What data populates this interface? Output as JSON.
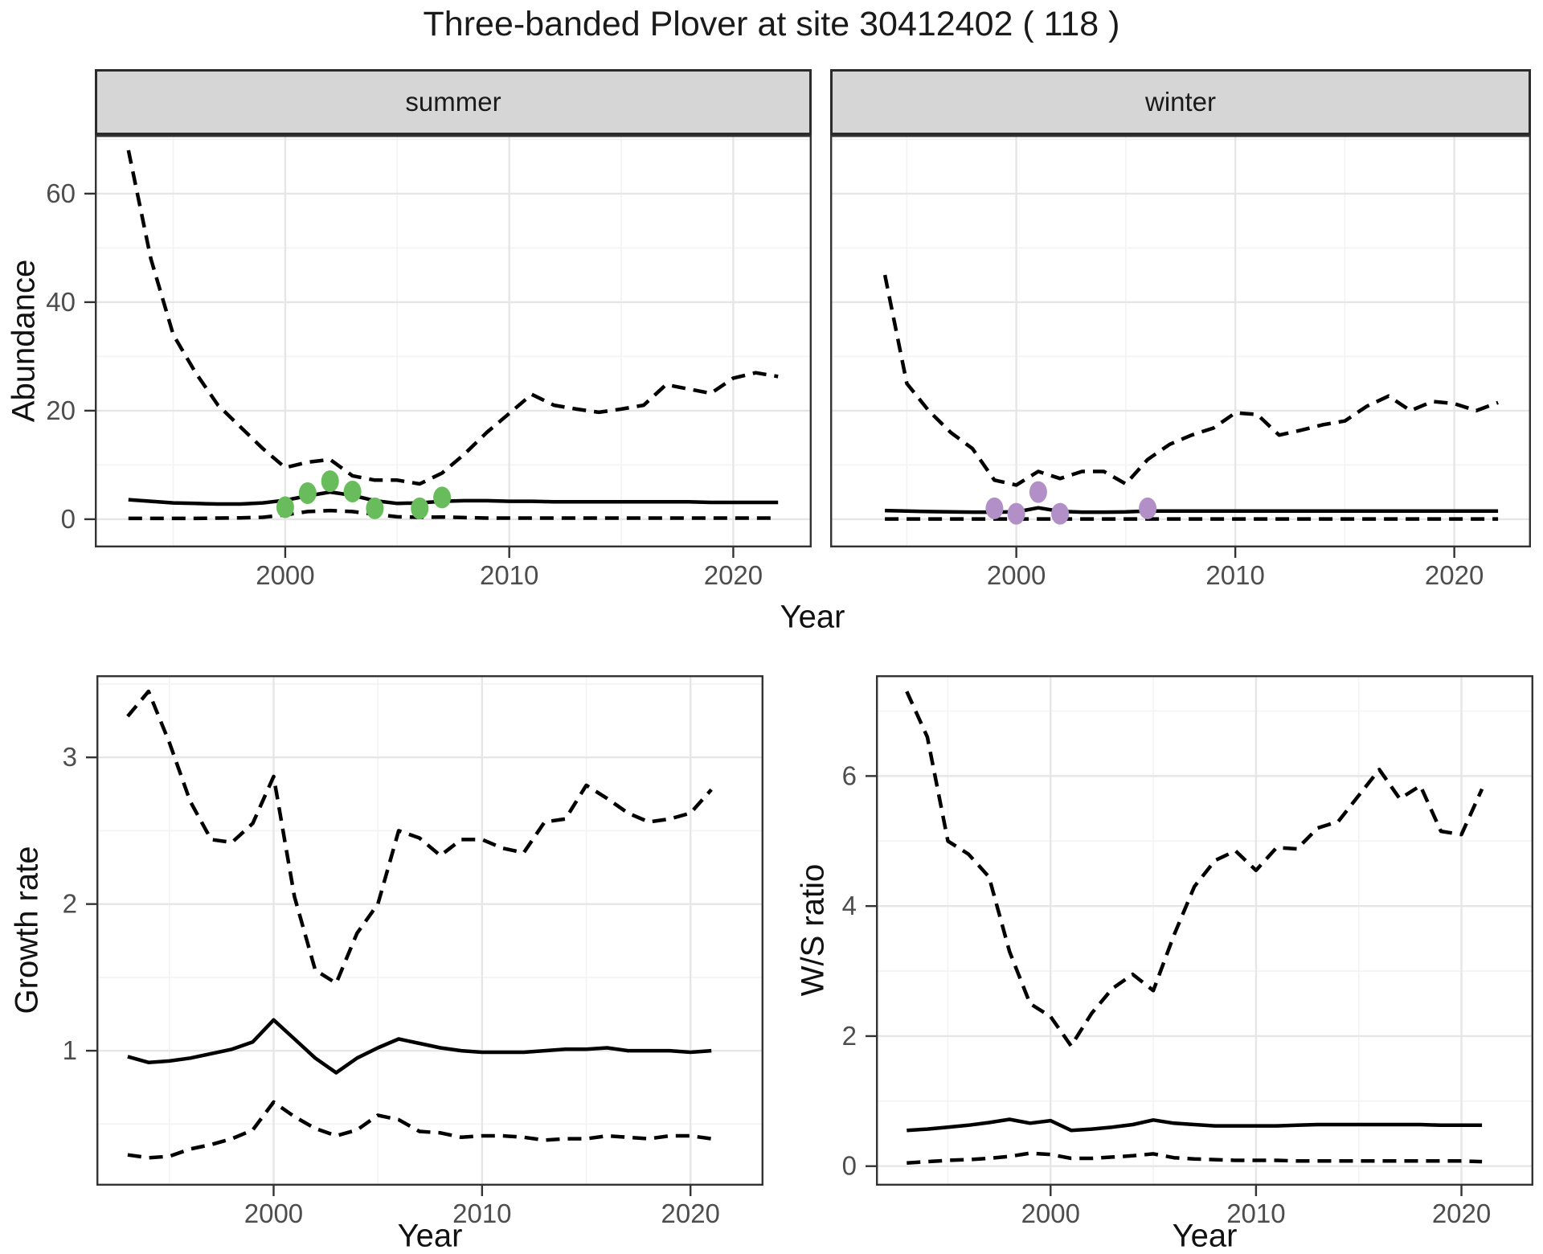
{
  "figure": {
    "title": "Three-banded Plover at site 30412402 ( 118 )"
  },
  "colors": {
    "line": "#000000",
    "summer_points": "#68bc5b",
    "winter_points": "#b290c7",
    "strip_bg": "#d6d6d6",
    "grid_major": "#e6e6e6",
    "grid_minor": "#f3f3f3",
    "tick_label": "#4d4d4d",
    "panel_border": "#333333"
  },
  "top_row": {
    "ylabel": "Abundance",
    "xlabel": "Year",
    "facets": [
      "summer",
      "winter"
    ]
  },
  "bottom_left": {
    "ylabel": "Growth rate",
    "xlabel": "Year"
  },
  "bottom_right": {
    "ylabel": "W/S ratio",
    "xlabel": "Year"
  },
  "chart_data": [
    {
      "id": "abundance_summer",
      "type": "line",
      "facet": "summer",
      "xlabel": "Year",
      "ylabel": "Abundance",
      "xlim": [
        1991.5,
        2023.5
      ],
      "ylim": [
        -5.2,
        70.8
      ],
      "xticks": [
        2000,
        2010,
        2020
      ],
      "yticks": [
        0,
        20,
        40,
        60
      ],
      "xticks_minor": [
        1995,
        2005,
        2015
      ],
      "yticks_minor": [
        10,
        30,
        50,
        70
      ],
      "axes": {
        "left": true,
        "bottom": true
      },
      "series": [
        {
          "name": "upper_ci",
          "style": "dashed",
          "x": [
            1993,
            1994,
            1995,
            1996,
            1997,
            1998,
            1999,
            2000,
            2001,
            2002,
            2003,
            2004,
            2005,
            2006,
            2007,
            2008,
            2009,
            2010,
            2011,
            2012,
            2013,
            2014,
            2015,
            2016,
            2017,
            2018,
            2019,
            2020,
            2021,
            2022
          ],
          "y": [
            68,
            48,
            34,
            27,
            21,
            17,
            13,
            9.5,
            10.5,
            11,
            8,
            7.2,
            7.2,
            6.5,
            8.5,
            12,
            16,
            19.5,
            23,
            21,
            20.3,
            19.7,
            20.3,
            21,
            24.8,
            24,
            23.2,
            26,
            27,
            26.3
          ]
        },
        {
          "name": "estimate",
          "style": "solid",
          "x": [
            1993,
            1994,
            1995,
            1996,
            1997,
            1998,
            1999,
            2000,
            2001,
            2002,
            2003,
            2004,
            2005,
            2006,
            2007,
            2008,
            2009,
            2010,
            2011,
            2012,
            2013,
            2014,
            2015,
            2016,
            2017,
            2018,
            2019,
            2020,
            2021,
            2022
          ],
          "y": [
            3.6,
            3.3,
            3.0,
            2.9,
            2.8,
            2.8,
            3.0,
            3.5,
            4.3,
            5.0,
            4.4,
            3.4,
            2.9,
            3.0,
            3.3,
            3.4,
            3.4,
            3.3,
            3.3,
            3.2,
            3.2,
            3.2,
            3.2,
            3.2,
            3.2,
            3.2,
            3.1,
            3.1,
            3.1,
            3.1
          ]
        },
        {
          "name": "lower_ci",
          "style": "dashed",
          "x": [
            1993,
            1994,
            1995,
            1996,
            1997,
            1998,
            1999,
            2000,
            2001,
            2002,
            2003,
            2004,
            2005,
            2006,
            2007,
            2008,
            2009,
            2010,
            2011,
            2012,
            2013,
            2014,
            2015,
            2016,
            2017,
            2018,
            2019,
            2020,
            2021,
            2022
          ],
          "y": [
            0.15,
            0.15,
            0.15,
            0.15,
            0.2,
            0.25,
            0.35,
            0.8,
            1.4,
            1.6,
            1.4,
            0.9,
            0.45,
            0.35,
            0.4,
            0.3,
            0.2,
            0.2,
            0.2,
            0.2,
            0.2,
            0.2,
            0.2,
            0.2,
            0.2,
            0.2,
            0.2,
            0.2,
            0.2,
            0.2
          ]
        },
        {
          "name": "observations",
          "style": "points",
          "color": "#68bc5b",
          "x": [
            2000,
            2001,
            2002,
            2003,
            2004,
            2006,
            2007
          ],
          "y": [
            2.2,
            4.8,
            7.0,
            5.1,
            2.0,
            2.0,
            4.0
          ]
        }
      ]
    },
    {
      "id": "abundance_winter",
      "type": "line",
      "facet": "winter",
      "xlabel": "Year",
      "ylabel": "Abundance",
      "xlim": [
        1991.5,
        2023.5
      ],
      "ylim": [
        -5.2,
        70.8
      ],
      "xticks": [
        2000,
        2010,
        2020
      ],
      "yticks": [
        0,
        20,
        40,
        60
      ],
      "xticks_minor": [
        1995,
        2005,
        2015
      ],
      "yticks_minor": [
        10,
        30,
        50,
        70
      ],
      "axes": {
        "left": false,
        "bottom": true
      },
      "series": [
        {
          "name": "upper_ci",
          "style": "dashed",
          "x": [
            1994,
            1995,
            1996,
            1997,
            1998,
            1999,
            2000,
            2001,
            2002,
            2003,
            2004,
            2005,
            2006,
            2007,
            2008,
            2009,
            2010,
            2011,
            2012,
            2013,
            2014,
            2015,
            2016,
            2017,
            2018,
            2019,
            2020,
            2021,
            2022
          ],
          "y": [
            45,
            25,
            20,
            16,
            13,
            7.2,
            6.3,
            8.8,
            7.5,
            8.8,
            8.8,
            6.5,
            11,
            13.8,
            15.5,
            16.8,
            19.6,
            19.3,
            15.5,
            16.4,
            17.4,
            18.1,
            20.8,
            22.7,
            20,
            21.7,
            21.3,
            20,
            21.5
          ]
        },
        {
          "name": "estimate",
          "style": "solid",
          "x": [
            1994,
            1995,
            1996,
            1997,
            1998,
            1999,
            2000,
            2001,
            2002,
            2003,
            2004,
            2005,
            2006,
            2007,
            2008,
            2009,
            2010,
            2011,
            2012,
            2013,
            2014,
            2015,
            2016,
            2017,
            2018,
            2019,
            2020,
            2021,
            2022
          ],
          "y": [
            1.6,
            1.5,
            1.4,
            1.35,
            1.3,
            1.3,
            1.35,
            2.1,
            1.45,
            1.3,
            1.3,
            1.35,
            1.5,
            1.5,
            1.5,
            1.5,
            1.5,
            1.5,
            1.5,
            1.5,
            1.5,
            1.5,
            1.5,
            1.5,
            1.5,
            1.5,
            1.5,
            1.5,
            1.5
          ]
        },
        {
          "name": "lower_ci",
          "style": "dashed",
          "x": [
            1994,
            1995,
            1996,
            1997,
            1998,
            1999,
            2000,
            2001,
            2002,
            2003,
            2004,
            2005,
            2006,
            2007,
            2008,
            2009,
            2010,
            2011,
            2012,
            2013,
            2014,
            2015,
            2016,
            2017,
            2018,
            2019,
            2020,
            2021,
            2022
          ],
          "y": [
            0.05,
            0.05,
            0.05,
            0.05,
            0.05,
            0.05,
            0.05,
            0.05,
            0.05,
            0.05,
            0.05,
            0.05,
            0.05,
            0.05,
            0.05,
            0.05,
            0.05,
            0.05,
            0.05,
            0.05,
            0.05,
            0.05,
            0.05,
            0.05,
            0.05,
            0.05,
            0.05,
            0.05,
            0.05
          ]
        },
        {
          "name": "observations",
          "style": "points",
          "color": "#b290c7",
          "x": [
            1999,
            2000,
            2001,
            2002,
            2006
          ],
          "y": [
            2.0,
            1.0,
            5.0,
            1.0,
            2.0
          ]
        }
      ]
    },
    {
      "id": "growth_rate",
      "type": "line",
      "xlabel": "Year",
      "ylabel": "Growth rate",
      "xlim": [
        1991.5,
        2023.5
      ],
      "ylim": [
        0.08,
        3.56
      ],
      "xticks": [
        2000,
        2010,
        2020
      ],
      "yticks": [
        1,
        2,
        3
      ],
      "xticks_minor": [
        1995,
        2005,
        2015
      ],
      "yticks_minor": [
        0.5,
        1.5,
        2.5,
        3.5
      ],
      "axes": {
        "left": true,
        "bottom": true
      },
      "series": [
        {
          "name": "upper_ci",
          "style": "dashed",
          "x": [
            1993,
            1994,
            1995,
            1996,
            1997,
            1998,
            1999,
            2000,
            2001,
            2002,
            2003,
            2004,
            2005,
            2006,
            2007,
            2008,
            2009,
            2010,
            2011,
            2012,
            2013,
            2014,
            2015,
            2016,
            2017,
            2018,
            2019,
            2020,
            2021
          ],
          "y": [
            3.28,
            3.45,
            3.1,
            2.7,
            2.44,
            2.42,
            2.55,
            2.87,
            2.05,
            1.55,
            1.46,
            1.8,
            2.0,
            2.5,
            2.45,
            2.33,
            2.44,
            2.44,
            2.38,
            2.35,
            2.56,
            2.58,
            2.81,
            2.72,
            2.62,
            2.56,
            2.58,
            2.62,
            2.78
          ]
        },
        {
          "name": "estimate",
          "style": "solid",
          "x": [
            1993,
            1994,
            1995,
            1996,
            1997,
            1998,
            1999,
            2000,
            2001,
            2002,
            2003,
            2004,
            2005,
            2006,
            2007,
            2008,
            2009,
            2010,
            2011,
            2012,
            2013,
            2014,
            2015,
            2016,
            2017,
            2018,
            2019,
            2020,
            2021
          ],
          "y": [
            0.96,
            0.92,
            0.93,
            0.95,
            0.98,
            1.01,
            1.06,
            1.21,
            1.08,
            0.95,
            0.85,
            0.95,
            1.02,
            1.08,
            1.05,
            1.02,
            1.0,
            0.99,
            0.99,
            0.99,
            1.0,
            1.01,
            1.01,
            1.02,
            1.0,
            1.0,
            1.0,
            0.99,
            1.0
          ]
        },
        {
          "name": "lower_ci",
          "style": "dashed",
          "x": [
            1993,
            1994,
            1995,
            1996,
            1997,
            1998,
            1999,
            2000,
            2001,
            2002,
            2003,
            2004,
            2005,
            2006,
            2007,
            2008,
            2009,
            2010,
            2011,
            2012,
            2013,
            2014,
            2015,
            2016,
            2017,
            2018,
            2019,
            2020,
            2021
          ],
          "y": [
            0.29,
            0.27,
            0.28,
            0.33,
            0.36,
            0.4,
            0.46,
            0.65,
            0.55,
            0.47,
            0.42,
            0.46,
            0.56,
            0.53,
            0.45,
            0.44,
            0.41,
            0.42,
            0.42,
            0.41,
            0.39,
            0.4,
            0.4,
            0.42,
            0.41,
            0.4,
            0.42,
            0.42,
            0.4
          ]
        }
      ]
    },
    {
      "id": "ws_ratio",
      "type": "line",
      "xlabel": "Year",
      "ylabel": "W/S ratio",
      "xlim": [
        1991.5,
        2023.5
      ],
      "ylim": [
        -0.3,
        7.55
      ],
      "xticks": [
        2000,
        2010,
        2020
      ],
      "yticks": [
        0,
        2,
        4,
        6
      ],
      "xticks_minor": [
        1995,
        2005,
        2015
      ],
      "yticks_minor": [
        1,
        3,
        5,
        7
      ],
      "axes": {
        "left": true,
        "bottom": true
      },
      "series": [
        {
          "name": "upper_ci",
          "style": "dashed",
          "x": [
            1993,
            1994,
            1995,
            1996,
            1997,
            1998,
            1999,
            2000,
            2001,
            2002,
            2003,
            2004,
            2005,
            2006,
            2007,
            2008,
            2009,
            2010,
            2011,
            2012,
            2013,
            2014,
            2015,
            2016,
            2017,
            2018,
            2019,
            2020,
            2021
          ],
          "y": [
            7.3,
            6.6,
            5.0,
            4.8,
            4.45,
            3.3,
            2.5,
            2.3,
            1.85,
            2.35,
            2.73,
            2.95,
            2.7,
            3.55,
            4.3,
            4.7,
            4.85,
            4.55,
            4.9,
            4.88,
            5.2,
            5.3,
            5.7,
            6.1,
            5.65,
            5.85,
            5.15,
            5.1,
            5.8
          ]
        },
        {
          "name": "estimate",
          "style": "solid",
          "x": [
            1993,
            1994,
            1995,
            1996,
            1997,
            1998,
            1999,
            2000,
            2001,
            2002,
            2003,
            2004,
            2005,
            2006,
            2007,
            2008,
            2009,
            2010,
            2011,
            2012,
            2013,
            2014,
            2015,
            2016,
            2017,
            2018,
            2019,
            2020,
            2021
          ],
          "y": [
            0.55,
            0.57,
            0.6,
            0.63,
            0.67,
            0.72,
            0.66,
            0.7,
            0.55,
            0.57,
            0.6,
            0.64,
            0.71,
            0.66,
            0.64,
            0.62,
            0.62,
            0.62,
            0.62,
            0.63,
            0.64,
            0.64,
            0.64,
            0.64,
            0.64,
            0.64,
            0.63,
            0.63,
            0.63
          ]
        },
        {
          "name": "lower_ci",
          "style": "dashed",
          "x": [
            1993,
            1994,
            1995,
            1996,
            1997,
            1998,
            1999,
            2000,
            2001,
            2002,
            2003,
            2004,
            2005,
            2006,
            2007,
            2008,
            2009,
            2010,
            2011,
            2012,
            2013,
            2014,
            2015,
            2016,
            2017,
            2018,
            2019,
            2020,
            2021
          ],
          "y": [
            0.05,
            0.07,
            0.09,
            0.1,
            0.12,
            0.15,
            0.2,
            0.18,
            0.12,
            0.12,
            0.14,
            0.16,
            0.19,
            0.13,
            0.11,
            0.1,
            0.09,
            0.09,
            0.09,
            0.08,
            0.08,
            0.08,
            0.08,
            0.08,
            0.08,
            0.08,
            0.08,
            0.08,
            0.07
          ]
        }
      ]
    }
  ]
}
